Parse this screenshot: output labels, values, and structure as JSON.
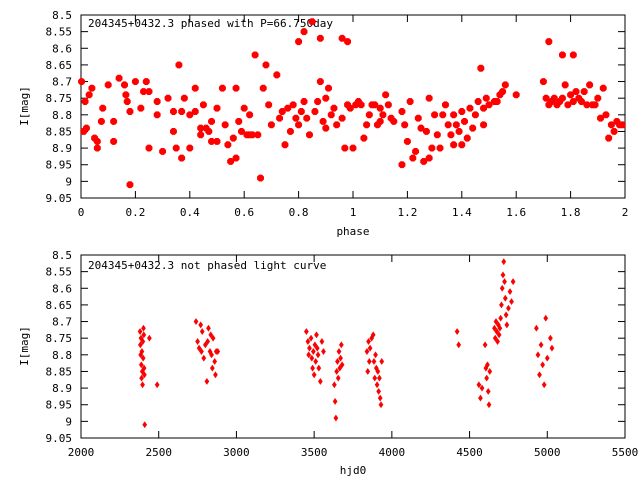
{
  "chart_data": [
    {
      "type": "scatter",
      "title": "204345+0432.3 phased with P=66.750day",
      "xlabel": "phase",
      "ylabel": "I[mag]",
      "xlim": [
        0,
        2
      ],
      "ylim": [
        9.05,
        8.5
      ],
      "y_inverted": true,
      "xticks": [
        0,
        0.2,
        0.4,
        0.6,
        0.8,
        1,
        1.2,
        1.4,
        1.6,
        1.8,
        2
      ],
      "yticks": [
        8.5,
        8.55,
        8.6,
        8.65,
        8.7,
        8.75,
        8.8,
        8.85,
        8.9,
        8.95,
        9,
        9.05
      ],
      "marker": "star",
      "color": "#ff0000",
      "points": [
        [
          0.002,
          8.7
        ],
        [
          0.01,
          8.85
        ],
        [
          0.015,
          8.76
        ],
        [
          0.02,
          8.84
        ],
        [
          0.03,
          8.74
        ],
        [
          0.04,
          8.72
        ],
        [
          0.05,
          8.87
        ],
        [
          0.06,
          8.88
        ],
        [
          0.06,
          8.9
        ],
        [
          0.075,
          8.82
        ],
        [
          0.08,
          8.78
        ],
        [
          0.1,
          8.71
        ],
        [
          0.12,
          8.88
        ],
        [
          0.12,
          8.82
        ],
        [
          0.14,
          8.69
        ],
        [
          0.16,
          8.71
        ],
        [
          0.165,
          8.74
        ],
        [
          0.17,
          8.76
        ],
        [
          0.18,
          8.79
        ],
        [
          0.18,
          9.01
        ],
        [
          0.2,
          8.7
        ],
        [
          0.22,
          8.78
        ],
        [
          0.23,
          8.73
        ],
        [
          0.24,
          8.7
        ],
        [
          0.25,
          8.73
        ],
        [
          0.25,
          8.9
        ],
        [
          0.28,
          8.8
        ],
        [
          0.28,
          8.76
        ],
        [
          0.3,
          8.91
        ],
        [
          0.32,
          8.75
        ],
        [
          0.34,
          8.79
        ],
        [
          0.34,
          8.85
        ],
        [
          0.35,
          8.9
        ],
        [
          0.36,
          8.65
        ],
        [
          0.37,
          8.79
        ],
        [
          0.37,
          8.93
        ],
        [
          0.38,
          8.75
        ],
        [
          0.4,
          8.8
        ],
        [
          0.4,
          8.9
        ],
        [
          0.42,
          8.72
        ],
        [
          0.42,
          8.79
        ],
        [
          0.44,
          8.84
        ],
        [
          0.44,
          8.86
        ],
        [
          0.45,
          8.77
        ],
        [
          0.46,
          8.84
        ],
        [
          0.47,
          8.85
        ],
        [
          0.48,
          8.82
        ],
        [
          0.48,
          8.88
        ],
        [
          0.5,
          8.78
        ],
        [
          0.5,
          8.88
        ],
        [
          0.52,
          8.72
        ],
        [
          0.53,
          8.83
        ],
        [
          0.54,
          8.89
        ],
        [
          0.55,
          8.94
        ],
        [
          0.56,
          8.87
        ],
        [
          0.57,
          8.72
        ],
        [
          0.57,
          8.93
        ],
        [
          0.58,
          8.82
        ],
        [
          0.59,
          8.85
        ],
        [
          0.6,
          8.78
        ],
        [
          0.61,
          8.86
        ],
        [
          0.62,
          8.8
        ],
        [
          0.62,
          8.86
        ],
        [
          0.63,
          8.86
        ],
        [
          0.64,
          8.62
        ],
        [
          0.65,
          8.86
        ],
        [
          0.66,
          8.99
        ],
        [
          0.67,
          8.72
        ],
        [
          0.68,
          8.65
        ],
        [
          0.69,
          8.77
        ],
        [
          0.7,
          8.83
        ],
        [
          0.72,
          8.68
        ],
        [
          0.73,
          8.81
        ],
        [
          0.74,
          8.79
        ],
        [
          0.75,
          8.89
        ],
        [
          0.76,
          8.78
        ],
        [
          0.77,
          8.85
        ],
        [
          0.78,
          8.77
        ],
        [
          0.79,
          8.81
        ],
        [
          0.8,
          8.58
        ],
        [
          0.8,
          8.83
        ],
        [
          0.81,
          8.79
        ],
        [
          0.82,
          8.76
        ],
        [
          0.82,
          8.55
        ],
        [
          0.83,
          8.81
        ],
        [
          0.84,
          8.86
        ],
        [
          0.85,
          8.52
        ],
        [
          0.86,
          8.79
        ],
        [
          0.87,
          8.76
        ],
        [
          0.88,
          8.57
        ],
        [
          0.88,
          8.7
        ],
        [
          0.89,
          8.82
        ],
        [
          0.9,
          8.75
        ],
        [
          0.9,
          8.84
        ],
        [
          0.91,
          8.72
        ],
        [
          0.92,
          8.8
        ],
        [
          0.93,
          8.78
        ],
        [
          0.94,
          8.83
        ],
        [
          0.96,
          8.57
        ],
        [
          0.96,
          8.81
        ],
        [
          0.97,
          8.9
        ],
        [
          0.98,
          8.58
        ],
        [
          0.98,
          8.77
        ],
        [
          0.99,
          8.78
        ],
        [
          1.0,
          8.9
        ],
        [
          1.01,
          8.77
        ],
        [
          1.02,
          8.76
        ],
        [
          1.03,
          8.77
        ],
        [
          1.04,
          8.87
        ],
        [
          1.05,
          8.83
        ],
        [
          1.06,
          8.8
        ],
        [
          1.07,
          8.77
        ],
        [
          1.08,
          8.77
        ],
        [
          1.09,
          8.83
        ],
        [
          1.1,
          8.82
        ],
        [
          1.1,
          8.78
        ],
        [
          1.11,
          8.8
        ],
        [
          1.12,
          8.74
        ],
        [
          1.13,
          8.77
        ],
        [
          1.14,
          8.81
        ],
        [
          1.15,
          8.82
        ],
        [
          1.18,
          8.79
        ],
        [
          1.18,
          8.95
        ],
        [
          1.19,
          8.83
        ],
        [
          1.2,
          8.88
        ],
        [
          1.21,
          8.76
        ],
        [
          1.22,
          8.93
        ],
        [
          1.23,
          8.91
        ],
        [
          1.24,
          8.81
        ],
        [
          1.25,
          8.84
        ],
        [
          1.26,
          8.94
        ],
        [
          1.27,
          8.85
        ],
        [
          1.28,
          8.75
        ],
        [
          1.28,
          8.93
        ],
        [
          1.29,
          8.9
        ],
        [
          1.3,
          8.8
        ],
        [
          1.31,
          8.86
        ],
        [
          1.32,
          8.9
        ],
        [
          1.33,
          8.8
        ],
        [
          1.34,
          8.77
        ],
        [
          1.35,
          8.83
        ],
        [
          1.36,
          8.86
        ],
        [
          1.37,
          8.8
        ],
        [
          1.37,
          8.89
        ],
        [
          1.38,
          8.83
        ],
        [
          1.39,
          8.85
        ],
        [
          1.4,
          8.79
        ],
        [
          1.4,
          8.89
        ],
        [
          1.41,
          8.82
        ],
        [
          1.42,
          8.87
        ],
        [
          1.43,
          8.78
        ],
        [
          1.44,
          8.84
        ],
        [
          1.45,
          8.8
        ],
        [
          1.46,
          8.76
        ],
        [
          1.47,
          8.66
        ],
        [
          1.48,
          8.83
        ],
        [
          1.48,
          8.78
        ],
        [
          1.49,
          8.75
        ],
        [
          1.5,
          8.77
        ],
        [
          1.52,
          8.76
        ],
        [
          1.53,
          8.76
        ],
        [
          1.54,
          8.74
        ],
        [
          1.55,
          8.73
        ],
        [
          1.56,
          8.71
        ],
        [
          1.6,
          8.74
        ],
        [
          1.7,
          8.7
        ],
        [
          1.71,
          8.75
        ],
        [
          1.72,
          8.77
        ],
        [
          1.72,
          8.58
        ],
        [
          1.73,
          8.76
        ],
        [
          1.74,
          8.75
        ],
        [
          1.75,
          8.77
        ],
        [
          1.76,
          8.76
        ],
        [
          1.77,
          8.62
        ],
        [
          1.77,
          8.75
        ],
        [
          1.78,
          8.71
        ],
        [
          1.79,
          8.77
        ],
        [
          1.8,
          8.74
        ],
        [
          1.81,
          8.62
        ],
        [
          1.81,
          8.76
        ],
        [
          1.82,
          8.73
        ],
        [
          1.83,
          8.75
        ],
        [
          1.84,
          8.76
        ],
        [
          1.85,
          8.73
        ],
        [
          1.86,
          8.77
        ],
        [
          1.87,
          8.71
        ],
        [
          1.88,
          8.77
        ],
        [
          1.89,
          8.77
        ],
        [
          1.9,
          8.75
        ],
        [
          1.91,
          8.81
        ],
        [
          1.92,
          8.72
        ],
        [
          1.93,
          8.8
        ],
        [
          1.94,
          8.87
        ],
        [
          1.95,
          8.83
        ],
        [
          1.96,
          8.85
        ],
        [
          1.97,
          8.82
        ],
        [
          1.98,
          8.83
        ],
        [
          1.99,
          8.83
        ]
      ]
    },
    {
      "type": "scatter",
      "title": "204345+0432.3 not phased light curve",
      "xlabel": "hjd0",
      "ylabel": "I[mag]",
      "xlim": [
        2000,
        5500
      ],
      "ylim": [
        9.05,
        8.5
      ],
      "y_inverted": true,
      "xticks": [
        2000,
        2500,
        3000,
        3500,
        4000,
        4500,
        5000,
        5500
      ],
      "yticks": [
        8.5,
        8.55,
        8.6,
        8.65,
        8.7,
        8.75,
        8.8,
        8.85,
        8.9,
        8.95,
        9,
        9.05
      ],
      "marker": "diamond",
      "color": "#ff0000",
      "points": [
        [
          2380,
          8.73
        ],
        [
          2382,
          8.77
        ],
        [
          2384,
          8.8
        ],
        [
          2386,
          8.75
        ],
        [
          2388,
          8.83
        ],
        [
          2390,
          8.87
        ],
        [
          2392,
          8.79
        ],
        [
          2394,
          8.85
        ],
        [
          2396,
          8.89
        ],
        [
          2398,
          8.76
        ],
        [
          2400,
          8.81
        ],
        [
          2402,
          8.72
        ],
        [
          2404,
          8.74
        ],
        [
          2406,
          8.84
        ],
        [
          2408,
          8.86
        ],
        [
          2410,
          9.01
        ],
        [
          2440,
          8.75
        ],
        [
          2490,
          8.89
        ],
        [
          2740,
          8.7
        ],
        [
          2750,
          8.76
        ],
        [
          2760,
          8.78
        ],
        [
          2770,
          8.71
        ],
        [
          2775,
          8.79
        ],
        [
          2780,
          8.73
        ],
        [
          2790,
          8.81
        ],
        [
          2800,
          8.77
        ],
        [
          2810,
          8.88
        ],
        [
          2815,
          8.76
        ],
        [
          2820,
          8.72
        ],
        [
          2830,
          8.79
        ],
        [
          2835,
          8.74
        ],
        [
          2840,
          8.8
        ],
        [
          2845,
          8.84
        ],
        [
          2850,
          8.75
        ],
        [
          2860,
          8.82
        ],
        [
          2865,
          8.86
        ],
        [
          2870,
          8.79
        ],
        [
          2880,
          8.79
        ],
        [
          3450,
          8.73
        ],
        [
          3460,
          8.76
        ],
        [
          3465,
          8.8
        ],
        [
          3470,
          8.78
        ],
        [
          3480,
          8.75
        ],
        [
          3485,
          8.81
        ],
        [
          3490,
          8.84
        ],
        [
          3495,
          8.79
        ],
        [
          3500,
          8.86
        ],
        [
          3505,
          8.77
        ],
        [
          3510,
          8.82
        ],
        [
          3515,
          8.74
        ],
        [
          3520,
          8.78
        ],
        [
          3525,
          8.8
        ],
        [
          3530,
          8.84
        ],
        [
          3540,
          8.88
        ],
        [
          3550,
          8.76
        ],
        [
          3560,
          8.79
        ],
        [
          3630,
          8.89
        ],
        [
          3635,
          8.94
        ],
        [
          3640,
          8.99
        ],
        [
          3645,
          8.85
        ],
        [
          3650,
          8.82
        ],
        [
          3655,
          8.87
        ],
        [
          3660,
          8.79
        ],
        [
          3665,
          8.84
        ],
        [
          3670,
          8.81
        ],
        [
          3675,
          8.77
        ],
        [
          3680,
          8.83
        ],
        [
          3840,
          8.79
        ],
        [
          3845,
          8.85
        ],
        [
          3850,
          8.76
        ],
        [
          3855,
          8.82
        ],
        [
          3860,
          8.78
        ],
        [
          3870,
          8.75
        ],
        [
          3880,
          8.74
        ],
        [
          3885,
          8.82
        ],
        [
          3890,
          8.87
        ],
        [
          3895,
          8.8
        ],
        [
          3900,
          8.84
        ],
        [
          3905,
          8.89
        ],
        [
          3910,
          8.85
        ],
        [
          3915,
          8.91
        ],
        [
          3920,
          8.87
        ],
        [
          3925,
          8.93
        ],
        [
          3930,
          8.95
        ],
        [
          3935,
          8.82
        ],
        [
          4420,
          8.73
        ],
        [
          4430,
          8.77
        ],
        [
          4560,
          8.89
        ],
        [
          4570,
          8.93
        ],
        [
          4580,
          8.9
        ],
        [
          4600,
          8.77
        ],
        [
          4605,
          8.84
        ],
        [
          4610,
          8.87
        ],
        [
          4615,
          8.83
        ],
        [
          4620,
          8.91
        ],
        [
          4625,
          8.95
        ],
        [
          4630,
          8.85
        ],
        [
          4660,
          8.72
        ],
        [
          4665,
          8.75
        ],
        [
          4670,
          8.7
        ],
        [
          4675,
          8.73
        ],
        [
          4680,
          8.76
        ],
        [
          4685,
          8.71
        ],
        [
          4690,
          8.74
        ],
        [
          4695,
          8.72
        ],
        [
          4700,
          8.69
        ],
        [
          4705,
          8.65
        ],
        [
          4710,
          8.6
        ],
        [
          4715,
          8.56
        ],
        [
          4720,
          8.52
        ],
        [
          4725,
          8.58
        ],
        [
          4730,
          8.63
        ],
        [
          4735,
          8.68
        ],
        [
          4740,
          8.71
        ],
        [
          4750,
          8.66
        ],
        [
          4760,
          8.61
        ],
        [
          4770,
          8.64
        ],
        [
          4780,
          8.58
        ],
        [
          4930,
          8.72
        ],
        [
          4940,
          8.8
        ],
        [
          4950,
          8.86
        ],
        [
          4960,
          8.77
        ],
        [
          4970,
          8.83
        ],
        [
          4980,
          8.89
        ],
        [
          4990,
          8.69
        ],
        [
          5000,
          8.81
        ],
        [
          5020,
          8.75
        ],
        [
          5030,
          8.78
        ]
      ]
    }
  ]
}
